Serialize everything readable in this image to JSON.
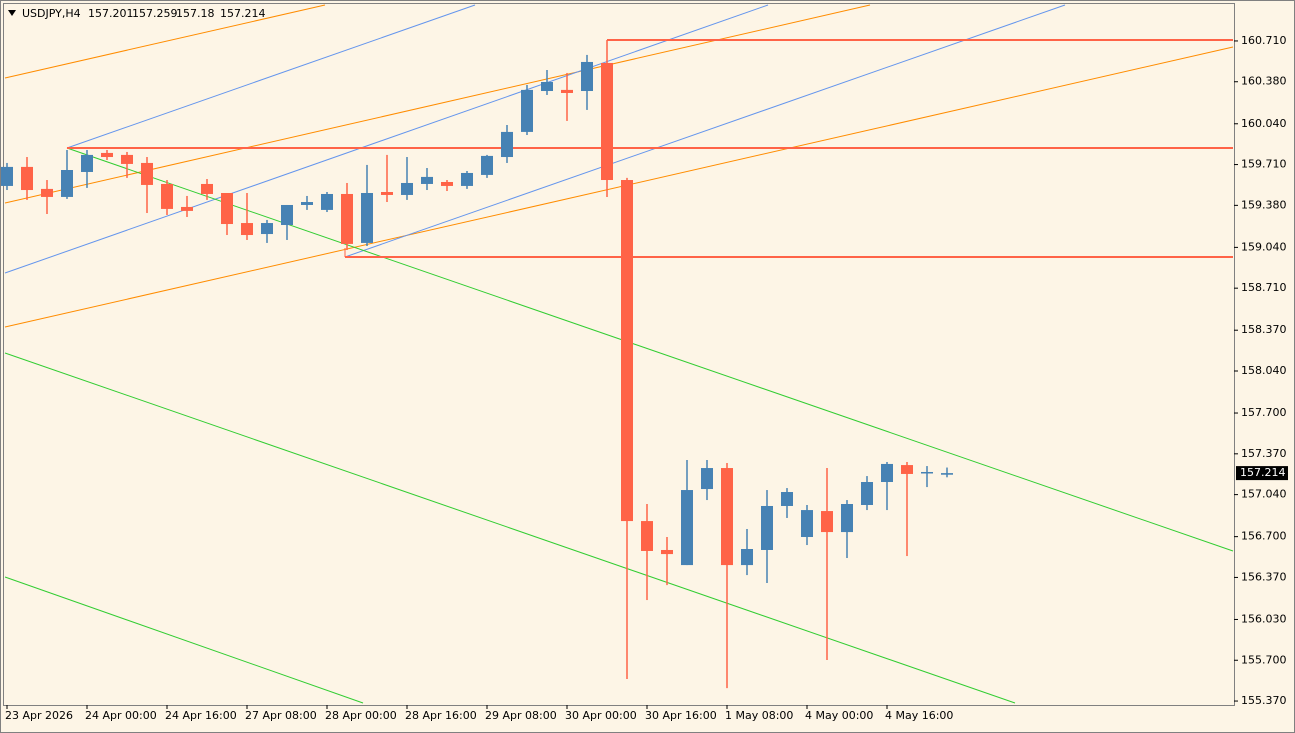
{
  "chart_data": {
    "type": "candlestick",
    "header": {
      "symbol": "USDJPY,H4",
      "ohlc": [
        157.201,
        157.259,
        157.18,
        157.214
      ]
    },
    "last_price": 157.214,
    "up_color": "#4682b4",
    "down_color": "#ff6347",
    "categories": [
      "23 Apr 2026",
      null,
      null,
      null,
      "24 Apr 00:00",
      null,
      null,
      null,
      "24 Apr 16:00",
      null,
      null,
      null,
      "27 Apr 08:00",
      null,
      null,
      null,
      "28 Apr 00:00",
      null,
      null,
      null,
      "28 Apr 16:00",
      null,
      null,
      null,
      "29 Apr 08:00",
      null,
      null,
      null,
      "30 Apr 00:00",
      null,
      null,
      null,
      "30 Apr 16:00",
      null,
      null,
      null,
      "1 May 08:00",
      null,
      null,
      null,
      "4 May 00:00",
      null,
      null,
      null,
      "4 May 16:00",
      null,
      null,
      null
    ],
    "open": [
      159.537,
      159.691,
      159.513,
      159.448,
      159.65,
      159.804,
      159.788,
      159.723,
      159.553,
      159.367,
      159.553,
      159.48,
      159.237,
      159.148,
      159.221,
      159.383,
      159.343,
      159.472,
      159.076,
      159.488,
      159.464,
      159.553,
      159.569,
      159.537,
      159.626,
      159.771,
      159.974,
      160.305,
      160.314,
      160.305,
      160.532,
      159.585,
      156.826,
      156.592,
      156.47,
      157.085,
      157.255,
      156.47,
      156.592,
      156.948,
      156.697,
      156.907,
      156.737,
      156.956,
      157.142,
      157.279,
      157.215,
      157.201
    ],
    "high": [
      159.723,
      159.771,
      159.585,
      159.828,
      159.828,
      159.828,
      159.812,
      159.771,
      159.585,
      159.456,
      159.593,
      159.48,
      159.48,
      159.262,
      159.383,
      159.456,
      159.488,
      159.561,
      159.707,
      159.788,
      159.771,
      159.682,
      159.585,
      159.658,
      159.788,
      160.03,
      160.354,
      160.475,
      160.451,
      160.597,
      160.718,
      159.602,
      156.964,
      156.697,
      157.32,
      157.32,
      157.296,
      156.762,
      157.077,
      157.093,
      156.956,
      157.255,
      156.996,
      157.19,
      157.304,
      157.304,
      157.271,
      157.259
    ],
    "low": [
      159.504,
      159.424,
      159.31,
      159.432,
      159.521,
      159.747,
      159.602,
      159.318,
      159.302,
      159.286,
      159.424,
      159.14,
      159.1,
      159.076,
      159.1,
      159.343,
      159.326,
      159.019,
      159.051,
      159.407,
      159.424,
      159.504,
      159.496,
      159.513,
      159.602,
      159.723,
      159.949,
      160.273,
      160.063,
      160.152,
      159.448,
      155.548,
      156.187,
      156.308,
      156.47,
      156.996,
      155.475,
      156.389,
      156.325,
      156.851,
      156.632,
      155.702,
      156.527,
      156.915,
      156.915,
      156.543,
      157.101,
      157.18
    ],
    "close": [
      159.691,
      159.504,
      159.448,
      159.666,
      159.788,
      159.771,
      159.715,
      159.545,
      159.351,
      159.335,
      159.472,
      159.229,
      159.14,
      159.237,
      159.383,
      159.407,
      159.472,
      159.068,
      159.48,
      159.464,
      159.561,
      159.61,
      159.537,
      159.642,
      159.78,
      159.974,
      160.314,
      160.378,
      160.289,
      160.54,
      159.585,
      156.826,
      156.584,
      156.559,
      157.077,
      157.255,
      156.47,
      156.6,
      156.948,
      157.061,
      156.915,
      156.737,
      156.964,
      157.142,
      157.288,
      157.207,
      157.223,
      157.214
    ],
    "ylim": [
      155.338,
      161.017
    ],
    "yticks": [
      {
        "value": 160.71,
        "label": "160.710"
      },
      {
        "value": 160.38,
        "label": "160.380"
      },
      {
        "value": 160.04,
        "label": "160.040"
      },
      {
        "value": 159.71,
        "label": "159.710"
      },
      {
        "value": 159.38,
        "label": "159.380"
      },
      {
        "value": 159.04,
        "label": "159.040"
      },
      {
        "value": 158.71,
        "label": "158.710"
      },
      {
        "value": 158.37,
        "label": "158.370"
      },
      {
        "value": 158.04,
        "label": "158.040"
      },
      {
        "value": 157.7,
        "label": "157.700"
      },
      {
        "value": 157.37,
        "label": "157.370"
      },
      {
        "value": 157.04,
        "label": "157.040"
      },
      {
        "value": 156.7,
        "label": "156.700"
      },
      {
        "value": 156.37,
        "label": "156.370"
      },
      {
        "value": 156.03,
        "label": "156.030"
      },
      {
        "value": 155.7,
        "label": "155.700"
      },
      {
        "value": 155.37,
        "label": "155.370"
      }
    ]
  }
}
